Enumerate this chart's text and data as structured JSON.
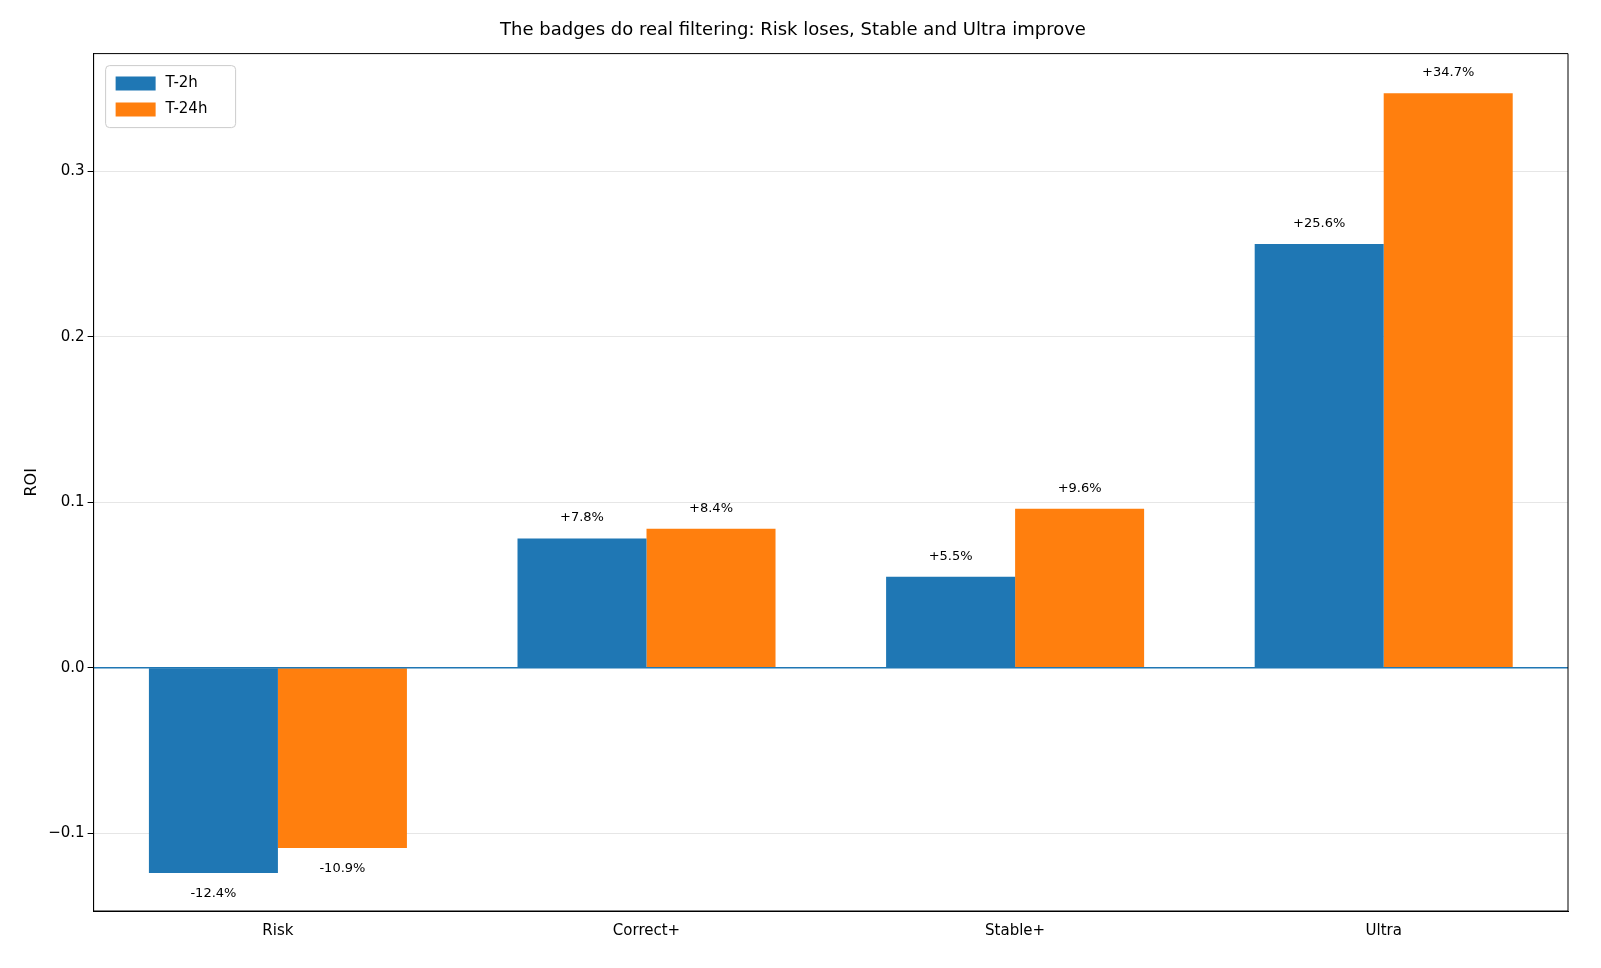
{
  "chart_data": {
    "type": "bar",
    "title": "The badges do real filtering: Risk loses, Stable and Ultra improve",
    "ylabel": "ROI",
    "categories": [
      "Risk",
      "Correct+",
      "Stable+",
      "Ultra"
    ],
    "series": [
      {
        "name": "T-2h",
        "color": "#1f77b4",
        "values": [
          -0.124,
          0.078,
          0.055,
          0.256
        ],
        "value_labels": [
          "-12.4%",
          "+7.8%",
          "+5.5%",
          "+25.6%"
        ]
      },
      {
        "name": "T-24h",
        "color": "#ff7f0e",
        "values": [
          -0.109,
          0.084,
          0.096,
          0.347
        ],
        "value_labels": [
          "-10.9%",
          "+8.4%",
          "+9.6%",
          "+34.7%"
        ]
      }
    ],
    "ylim": [
      -0.147,
      0.371
    ],
    "yticks": [
      {
        "value": -0.1,
        "label": "−0.1"
      },
      {
        "value": 0,
        "label": "0.0"
      },
      {
        "value": 0.1,
        "label": "0.1"
      },
      {
        "value": 0.2,
        "label": "0.2"
      },
      {
        "value": 0.3,
        "label": "0.3"
      }
    ],
    "ref_lines": [
      {
        "axis": "y",
        "value": 0,
        "label": null,
        "color": "#1f77b4"
      }
    ],
    "grid": "y",
    "legend": "top left"
  }
}
